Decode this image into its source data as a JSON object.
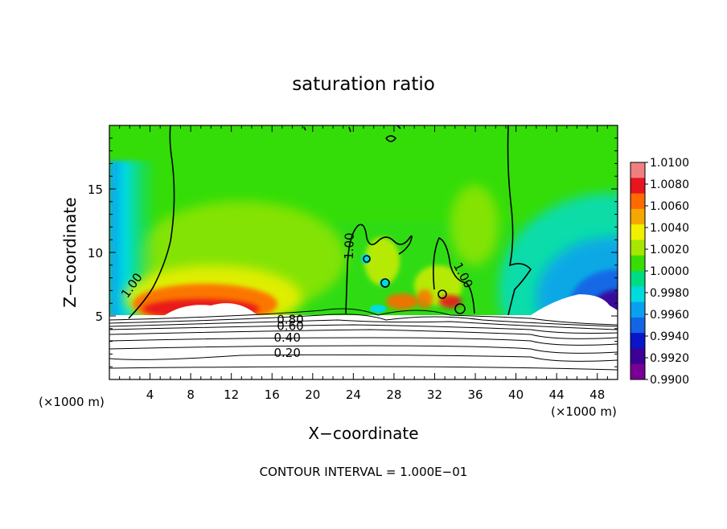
{
  "chart_data": {
    "type": "heatmap",
    "title": "saturation ratio",
    "xlabel": "X−coordinate",
    "ylabel": "Z−coordinate",
    "x_unit_left": "(×1000 m)",
    "x_unit_right": "(×1000 m)",
    "footer": "CONTOUR INTERVAL = 1.000E−01",
    "xlim": [
      0,
      50
    ],
    "ylim": [
      0,
      20
    ],
    "x_ticks": [
      4,
      8,
      12,
      16,
      20,
      24,
      28,
      32,
      36,
      40,
      44,
      48
    ],
    "y_ticks": [
      5,
      10,
      15
    ],
    "colorbar": {
      "levels": [
        "1.0100",
        "1.0080",
        "1.0060",
        "1.0040",
        "1.0020",
        "1.0000",
        "0.9980",
        "0.9960",
        "0.9940",
        "0.9920",
        "0.9900"
      ],
      "min": 0.99,
      "max": 1.01,
      "colors": [
        "#f08080",
        "#e8141e",
        "#ff6a00",
        "#f5a800",
        "#f0f000",
        "#a6e600",
        "#39dd00",
        "#00dc82",
        "#00dcdc",
        "#0aa0f0",
        "#1464e6",
        "#0a14c8",
        "#3c0096",
        "#780096"
      ]
    },
    "contour_labels": [
      {
        "text": "1.00",
        "x": 2.2,
        "z": 7.4
      },
      {
        "text": "1.00",
        "x": 23.6,
        "z": 10.5
      },
      {
        "text": "1.00",
        "x": 34.8,
        "z": 8.2
      },
      {
        "text": "0.80",
        "x": 17.8,
        "z": 4.7
      },
      {
        "text": "0.60",
        "x": 17.8,
        "z": 4.2
      },
      {
        "text": "0.40",
        "x": 17.5,
        "z": 3.3
      },
      {
        "text": "0.20",
        "x": 17.5,
        "z": 2.1
      }
    ],
    "boundary_z": 5.0
  }
}
